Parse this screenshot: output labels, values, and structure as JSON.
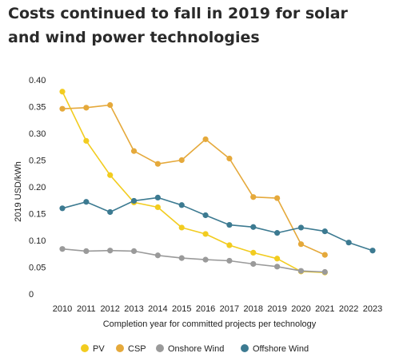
{
  "chart_data": {
    "type": "line",
    "title": "Costs continued to fall in 2019 for solar\nand wind power technologies",
    "xlabel": "Completion year for committed projects per technology",
    "ylabel": "2019 USD/kWh",
    "x_ticks": [
      "2010",
      "2011",
      "2012",
      "2013",
      "2014",
      "2015",
      "2016",
      "2017",
      "2018",
      "2019",
      "2020",
      "2021",
      "2022",
      "2023"
    ],
    "y_ticks": [
      "0",
      "0.05",
      "0.10",
      "0.15",
      "0.20",
      "0.25",
      "0.30",
      "0.35",
      "0.40"
    ],
    "xlim": [
      2010,
      2023
    ],
    "ylim": [
      0,
      0.4
    ],
    "grid": false,
    "legend_position": "bottom",
    "series": [
      {
        "name": "PV",
        "color": "#f2cc1f",
        "x": [
          2010,
          2011,
          2012,
          2013,
          2014,
          2015,
          2016,
          2017,
          2018,
          2019,
          2020,
          2021
        ],
        "values": [
          0.378,
          0.286,
          0.222,
          0.171,
          0.162,
          0.124,
          0.112,
          0.091,
          0.077,
          0.066,
          0.042,
          0.04
        ]
      },
      {
        "name": "CSP",
        "color": "#e5a93b",
        "x": [
          2010,
          2011,
          2012,
          2013,
          2014,
          2015,
          2016,
          2017,
          2018,
          2019,
          2020,
          2021
        ],
        "values": [
          0.346,
          0.348,
          0.353,
          0.267,
          0.243,
          0.25,
          0.289,
          0.253,
          0.181,
          0.179,
          0.093,
          0.073
        ]
      },
      {
        "name": "Onshore Wind",
        "color": "#9a9a9a",
        "x": [
          2010,
          2011,
          2012,
          2013,
          2014,
          2015,
          2016,
          2017,
          2018,
          2019,
          2020,
          2021
        ],
        "values": [
          0.084,
          0.08,
          0.081,
          0.08,
          0.072,
          0.067,
          0.064,
          0.062,
          0.056,
          0.051,
          0.043,
          0.041
        ]
      },
      {
        "name": "Offshore Wind",
        "color": "#3c7a91",
        "x": [
          2010,
          2011,
          2012,
          2013,
          2014,
          2015,
          2016,
          2017,
          2018,
          2019,
          2020,
          2021,
          2022,
          2023
        ],
        "values": [
          0.16,
          0.172,
          0.153,
          0.174,
          0.18,
          0.166,
          0.147,
          0.129,
          0.125,
          0.114,
          0.124,
          0.117,
          0.096,
          0.081
        ]
      }
    ]
  }
}
